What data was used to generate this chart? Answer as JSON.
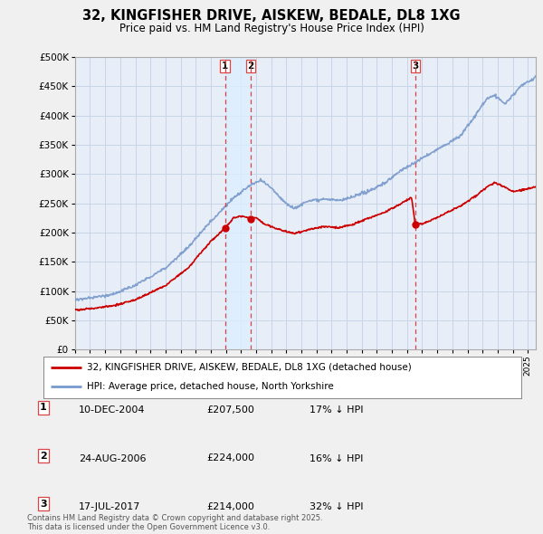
{
  "title": "32, KINGFISHER DRIVE, AISKEW, BEDALE, DL8 1XG",
  "subtitle": "Price paid vs. HM Land Registry's House Price Index (HPI)",
  "ylim": [
    0,
    500000
  ],
  "yticks": [
    0,
    50000,
    100000,
    150000,
    200000,
    250000,
    300000,
    350000,
    400000,
    450000,
    500000
  ],
  "xlim_start": 1995.0,
  "xlim_end": 2025.5,
  "sale_dates": [
    2004.94,
    2006.64,
    2017.54
  ],
  "sale_prices": [
    207500,
    224000,
    214000
  ],
  "sale_labels": [
    "1",
    "2",
    "3"
  ],
  "vline_color": "#dd4444",
  "vline_style": "--",
  "shade_color": "#ddeeff",
  "legend_label_red": "32, KINGFISHER DRIVE, AISKEW, BEDALE, DL8 1XG (detached house)",
  "legend_label_blue": "HPI: Average price, detached house, North Yorkshire",
  "table_entries": [
    {
      "label": "1",
      "date": "10-DEC-2004",
      "price": "£207,500",
      "hpi": "17% ↓ HPI"
    },
    {
      "label": "2",
      "date": "24-AUG-2006",
      "price": "£224,000",
      "hpi": "16% ↓ HPI"
    },
    {
      "label": "3",
      "date": "17-JUL-2017",
      "price": "£214,000",
      "hpi": "32% ↓ HPI"
    }
  ],
  "footnote": "Contains HM Land Registry data © Crown copyright and database right 2025.\nThis data is licensed under the Open Government Licence v3.0.",
  "bg_color": "#f0f0f0",
  "plot_bg_color": "#e8eef8",
  "grid_color": "#c8d4e8",
  "red_line_color": "#cc0000",
  "blue_line_color": "#7799cc"
}
